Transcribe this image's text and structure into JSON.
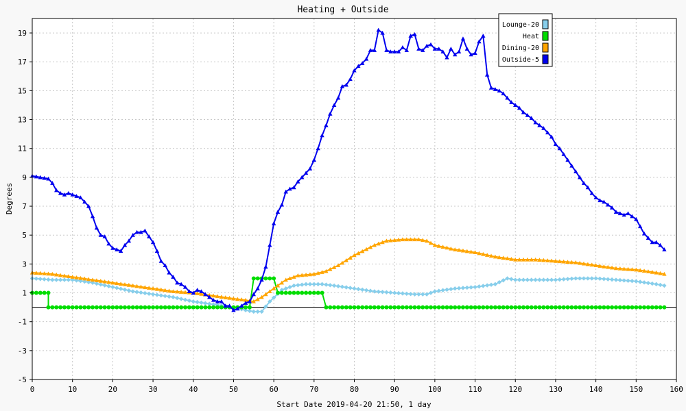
{
  "chart_data": {
    "type": "line",
    "title": "Heating + Outside",
    "xlabel": "Start Date 2019-04-20 21:50, 1 day",
    "ylabel": "Degrees",
    "xlim": [
      0,
      160
    ],
    "ylim": [
      -5,
      20
    ],
    "x_ticks": [
      0,
      10,
      20,
      30,
      40,
      50,
      60,
      70,
      80,
      90,
      100,
      110,
      120,
      130,
      140,
      150,
      160
    ],
    "y_ticks": [
      -5,
      -3,
      -1,
      1,
      3,
      5,
      7,
      9,
      11,
      13,
      15,
      17,
      19
    ],
    "grid": true,
    "legend_position": "top-right",
    "series": [
      {
        "name": "Lounge-20",
        "color": "#87ceeb",
        "marker": "diamond",
        "points": [
          [
            0,
            2.0
          ],
          [
            5,
            1.9
          ],
          [
            10,
            1.9
          ],
          [
            15,
            1.7
          ],
          [
            20,
            1.4
          ],
          [
            25,
            1.1
          ],
          [
            30,
            0.9
          ],
          [
            35,
            0.7
          ],
          [
            40,
            0.4
          ],
          [
            45,
            0.2
          ],
          [
            50,
            0.0
          ],
          [
            53,
            -0.2
          ],
          [
            55,
            -0.3
          ],
          [
            57,
            -0.3
          ],
          [
            59,
            0.4
          ],
          [
            62,
            1.2
          ],
          [
            65,
            1.5
          ],
          [
            68,
            1.6
          ],
          [
            72,
            1.6
          ],
          [
            75,
            1.5
          ],
          [
            80,
            1.3
          ],
          [
            85,
            1.1
          ],
          [
            90,
            1.0
          ],
          [
            95,
            0.9
          ],
          [
            98,
            0.9
          ],
          [
            100,
            1.1
          ],
          [
            105,
            1.3
          ],
          [
            110,
            1.4
          ],
          [
            115,
            1.6
          ],
          [
            118,
            2.0
          ],
          [
            120,
            1.9
          ],
          [
            125,
            1.9
          ],
          [
            130,
            1.9
          ],
          [
            135,
            2.0
          ],
          [
            140,
            2.0
          ],
          [
            145,
            1.9
          ],
          [
            150,
            1.8
          ],
          [
            155,
            1.6
          ],
          [
            157,
            1.5
          ]
        ]
      },
      {
        "name": "Heat",
        "color": "#00dd00",
        "marker": "circle",
        "points": [
          [
            0,
            1
          ],
          [
            4,
            1
          ],
          [
            4,
            0
          ],
          [
            54,
            0
          ],
          [
            55,
            2
          ],
          [
            60,
            2
          ],
          [
            61,
            1
          ],
          [
            72,
            1
          ],
          [
            73,
            0
          ],
          [
            157,
            0
          ]
        ]
      },
      {
        "name": "Dining-20",
        "color": "#ffa500",
        "marker": "triangle",
        "points": [
          [
            0,
            2.4
          ],
          [
            5,
            2.3
          ],
          [
            10,
            2.1
          ],
          [
            15,
            1.9
          ],
          [
            20,
            1.7
          ],
          [
            25,
            1.5
          ],
          [
            30,
            1.3
          ],
          [
            35,
            1.1
          ],
          [
            40,
            1.0
          ],
          [
            45,
            0.8
          ],
          [
            50,
            0.6
          ],
          [
            53,
            0.5
          ],
          [
            55,
            0.4
          ],
          [
            57,
            0.7
          ],
          [
            60,
            1.3
          ],
          [
            63,
            1.9
          ],
          [
            66,
            2.2
          ],
          [
            70,
            2.3
          ],
          [
            73,
            2.5
          ],
          [
            76,
            2.9
          ],
          [
            80,
            3.6
          ],
          [
            85,
            4.3
          ],
          [
            88,
            4.6
          ],
          [
            92,
            4.7
          ],
          [
            96,
            4.7
          ],
          [
            98,
            4.6
          ],
          [
            100,
            4.3
          ],
          [
            105,
            4.0
          ],
          [
            110,
            3.8
          ],
          [
            115,
            3.5
          ],
          [
            120,
            3.3
          ],
          [
            125,
            3.3
          ],
          [
            130,
            3.2
          ],
          [
            135,
            3.1
          ],
          [
            140,
            2.9
          ],
          [
            145,
            2.7
          ],
          [
            150,
            2.6
          ],
          [
            155,
            2.4
          ],
          [
            157,
            2.3
          ]
        ]
      },
      {
        "name": "Outside-5",
        "color": "#0000ee",
        "marker": "triangle",
        "points": [
          [
            0,
            9.1
          ],
          [
            2,
            9.0
          ],
          [
            4,
            8.9
          ],
          [
            5,
            8.6
          ],
          [
            6,
            8.1
          ],
          [
            7,
            7.9
          ],
          [
            8,
            7.8
          ],
          [
            9,
            7.9
          ],
          [
            10,
            7.8
          ],
          [
            11,
            7.7
          ],
          [
            12,
            7.6
          ],
          [
            13,
            7.3
          ],
          [
            14,
            7.0
          ],
          [
            15,
            6.3
          ],
          [
            16,
            5.5
          ],
          [
            17,
            5.0
          ],
          [
            18,
            4.9
          ],
          [
            19,
            4.4
          ],
          [
            20,
            4.1
          ],
          [
            21,
            4.0
          ],
          [
            22,
            3.9
          ],
          [
            23,
            4.3
          ],
          [
            24,
            4.6
          ],
          [
            25,
            5.0
          ],
          [
            26,
            5.2
          ],
          [
            27,
            5.2
          ],
          [
            28,
            5.3
          ],
          [
            29,
            4.9
          ],
          [
            30,
            4.5
          ],
          [
            31,
            3.9
          ],
          [
            32,
            3.2
          ],
          [
            33,
            2.9
          ],
          [
            34,
            2.4
          ],
          [
            35,
            2.1
          ],
          [
            36,
            1.7
          ],
          [
            37,
            1.6
          ],
          [
            38,
            1.4
          ],
          [
            39,
            1.1
          ],
          [
            40,
            1.0
          ],
          [
            41,
            1.2
          ],
          [
            42,
            1.1
          ],
          [
            43,
            0.9
          ],
          [
            44,
            0.7
          ],
          [
            45,
            0.5
          ],
          [
            46,
            0.4
          ],
          [
            47,
            0.4
          ],
          [
            48,
            0.1
          ],
          [
            49,
            0.1
          ],
          [
            50,
            -0.2
          ],
          [
            51,
            -0.1
          ],
          [
            52,
            0.1
          ],
          [
            53,
            0.3
          ],
          [
            54,
            0.4
          ],
          [
            55,
            0.9
          ],
          [
            56,
            1.3
          ],
          [
            57,
            1.9
          ],
          [
            58,
            2.8
          ],
          [
            59,
            4.3
          ],
          [
            60,
            5.8
          ],
          [
            61,
            6.6
          ],
          [
            62,
            7.1
          ],
          [
            63,
            8.0
          ],
          [
            64,
            8.2
          ],
          [
            65,
            8.3
          ],
          [
            66,
            8.7
          ],
          [
            67,
            9.0
          ],
          [
            68,
            9.3
          ],
          [
            69,
            9.6
          ],
          [
            70,
            10.2
          ],
          [
            71,
            11.0
          ],
          [
            72,
            11.9
          ],
          [
            73,
            12.6
          ],
          [
            74,
            13.4
          ],
          [
            75,
            14.0
          ],
          [
            76,
            14.5
          ],
          [
            77,
            15.3
          ],
          [
            78,
            15.4
          ],
          [
            79,
            15.8
          ],
          [
            80,
            16.4
          ],
          [
            81,
            16.7
          ],
          [
            82,
            16.9
          ],
          [
            83,
            17.2
          ],
          [
            84,
            17.8
          ],
          [
            85,
            17.8
          ],
          [
            86,
            19.2
          ],
          [
            87,
            19.0
          ],
          [
            88,
            17.8
          ],
          [
            89,
            17.7
          ],
          [
            90,
            17.7
          ],
          [
            91,
            17.7
          ],
          [
            92,
            18.0
          ],
          [
            93,
            17.8
          ],
          [
            94,
            18.8
          ],
          [
            95,
            18.9
          ],
          [
            96,
            17.9
          ],
          [
            97,
            17.8
          ],
          [
            98,
            18.1
          ],
          [
            99,
            18.2
          ],
          [
            100,
            17.9
          ],
          [
            101,
            17.9
          ],
          [
            102,
            17.7
          ],
          [
            103,
            17.3
          ],
          [
            104,
            17.9
          ],
          [
            105,
            17.5
          ],
          [
            106,
            17.7
          ],
          [
            107,
            18.6
          ],
          [
            108,
            17.9
          ],
          [
            109,
            17.5
          ],
          [
            110,
            17.6
          ],
          [
            111,
            18.4
          ],
          [
            112,
            18.8
          ],
          [
            113,
            16.1
          ],
          [
            114,
            15.2
          ],
          [
            115,
            15.1
          ],
          [
            116,
            15.0
          ],
          [
            117,
            14.8
          ],
          [
            118,
            14.5
          ],
          [
            119,
            14.2
          ],
          [
            120,
            14.0
          ],
          [
            121,
            13.8
          ],
          [
            122,
            13.5
          ],
          [
            123,
            13.3
          ],
          [
            124,
            13.1
          ],
          [
            125,
            12.8
          ],
          [
            126,
            12.6
          ],
          [
            127,
            12.4
          ],
          [
            128,
            12.1
          ],
          [
            129,
            11.8
          ],
          [
            130,
            11.3
          ],
          [
            131,
            11.0
          ],
          [
            132,
            10.6
          ],
          [
            133,
            10.2
          ],
          [
            134,
            9.8
          ],
          [
            135,
            9.4
          ],
          [
            136,
            9.0
          ],
          [
            137,
            8.6
          ],
          [
            138,
            8.3
          ],
          [
            139,
            7.9
          ],
          [
            140,
            7.6
          ],
          [
            141,
            7.4
          ],
          [
            142,
            7.3
          ],
          [
            143,
            7.1
          ],
          [
            144,
            6.9
          ],
          [
            145,
            6.6
          ],
          [
            146,
            6.5
          ],
          [
            147,
            6.4
          ],
          [
            148,
            6.5
          ],
          [
            149,
            6.3
          ],
          [
            150,
            6.1
          ],
          [
            151,
            5.6
          ],
          [
            152,
            5.1
          ],
          [
            153,
            4.8
          ],
          [
            154,
            4.5
          ],
          [
            155,
            4.5
          ],
          [
            156,
            4.3
          ],
          [
            157,
            4.0
          ]
        ]
      }
    ]
  }
}
